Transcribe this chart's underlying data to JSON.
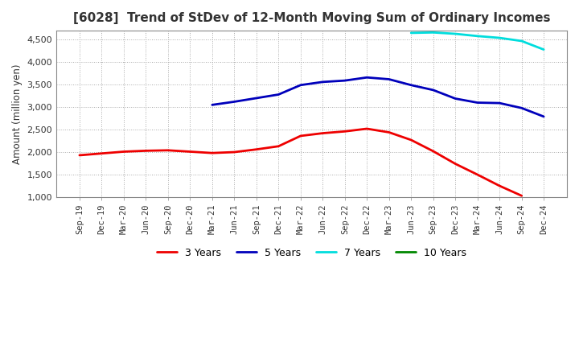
{
  "title": "[6028]  Trend of StDev of 12-Month Moving Sum of Ordinary Incomes",
  "ylabel": "Amount (million yen)",
  "background_color": "#FFFFFF",
  "grid_color": "#AAAAAA",
  "ylim": [
    1000,
    4700
  ],
  "yticks": [
    1000,
    1500,
    2000,
    2500,
    3000,
    3500,
    4000,
    4500
  ],
  "x_labels": [
    "Sep-19",
    "Dec-19",
    "Mar-20",
    "Jun-20",
    "Sep-20",
    "Dec-20",
    "Mar-21",
    "Jun-21",
    "Sep-21",
    "Dec-21",
    "Mar-22",
    "Jun-22",
    "Sep-22",
    "Dec-22",
    "Mar-23",
    "Jun-23",
    "Sep-23",
    "Dec-23",
    "Mar-24",
    "Jun-24",
    "Sep-24",
    "Dec-24"
  ],
  "series": {
    "3 Years": {
      "color": "#EE0000",
      "data": [
        1930,
        1970,
        2010,
        2030,
        2040,
        2010,
        1980,
        2000,
        2060,
        2130,
        2360,
        2420,
        2460,
        2520,
        2440,
        2270,
        2020,
        1740,
        1500,
        1250,
        1030,
        null
      ]
    },
    "5 Years": {
      "color": "#0000BB",
      "data": [
        null,
        null,
        null,
        null,
        null,
        null,
        3050,
        3120,
        3200,
        3280,
        3490,
        3560,
        3590,
        3660,
        3620,
        3490,
        3380,
        3190,
        3100,
        3090,
        2980,
        2790
      ]
    },
    "7 Years": {
      "color": "#00DDDD",
      "data": [
        null,
        null,
        null,
        null,
        null,
        null,
        null,
        null,
        null,
        null,
        null,
        null,
        null,
        null,
        null,
        4650,
        4660,
        4630,
        4580,
        4540,
        4470,
        4280
      ]
    },
    "10 Years": {
      "color": "#008800",
      "data": [
        null,
        null,
        null,
        null,
        null,
        null,
        null,
        null,
        null,
        null,
        null,
        null,
        null,
        null,
        null,
        null,
        null,
        null,
        null,
        null,
        null,
        null
      ]
    }
  }
}
